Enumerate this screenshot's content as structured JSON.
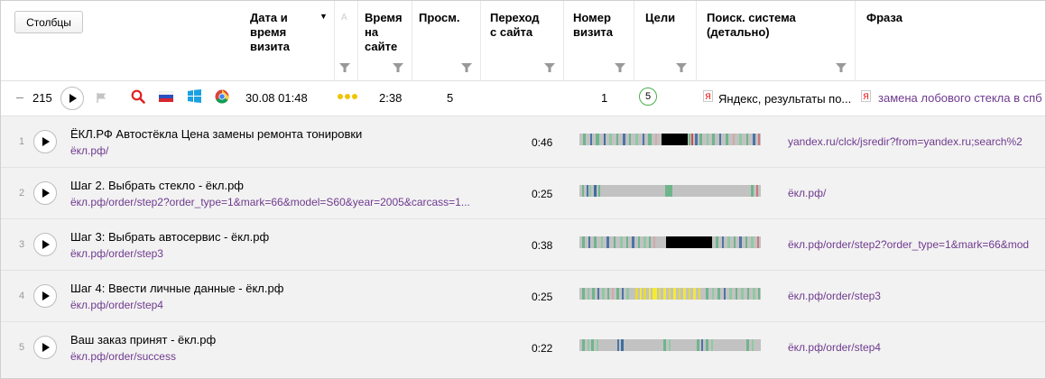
{
  "toolbar": {
    "columns_button": "Столбцы"
  },
  "columns": [
    {
      "label": "Дата и\nвремя\nвизита"
    },
    {
      "label": "А"
    },
    {
      "label": "Время\nна\nсайте"
    },
    {
      "label": "Просм."
    },
    {
      "label": "Переход\nс сайта"
    },
    {
      "label": "Номер\nвизита"
    },
    {
      "label": "Цели"
    },
    {
      "label": "Поиск. система\n(детально)"
    },
    {
      "label": "Фраза"
    }
  ],
  "sort_indicator": "▼",
  "visit": {
    "count": "215",
    "datetime": "30.08 01:48",
    "time_on_site": "2:38",
    "pageviews": "5",
    "visit_number": "1",
    "goals": "5",
    "search_engine_badge": "Я",
    "search_engine": "Яндекс, результаты по...",
    "phrase_badge": "Я",
    "phrase": "замена лобового стекла в спб",
    "icons": [
      "search-icon",
      "flag-ru-icon",
      "windows-icon",
      "chrome-icon"
    ]
  },
  "hits": [
    {
      "num": "1",
      "title": "ЁКЛ.РФ Автостёкла Цена замены ремонта тонировки",
      "url": "ёкл.рф/",
      "time": "0:46",
      "referrer": "yandex.ru/clck/jsredir?from=yandex.ru;search%2"
    },
    {
      "num": "2",
      "title": "Шаг 2. Выбрать стекло - ёкл.рф",
      "url": "ёкл.рф/order/step2?order_type=1&mark=66&model=S60&year=2005&carcass=1...",
      "time": "0:25",
      "referrer": "ёкл.рф/"
    },
    {
      "num": "3",
      "title": "Шаг 3: Выбрать автосервис - ёкл.рф",
      "url": "ёкл.рф/order/step3",
      "time": "0:38",
      "referrer": "ёкл.рф/order/step2?order_type=1&mark=66&mod"
    },
    {
      "num": "4",
      "title": "Шаг 4: Ввести личные данные - ёкл.рф",
      "url": "ёкл.рф/order/step4",
      "time": "0:25",
      "referrer": "ёкл.рф/order/step3"
    },
    {
      "num": "5",
      "title": "Ваш заказ принят - ёкл.рф",
      "url": "ёкл.рф/order/success",
      "time": "0:22",
      "referrer": "ёкл.рф/order/step4"
    }
  ],
  "colors": {
    "link": "#6f3a8f",
    "goal_ring": "#4cae4c",
    "dot": "#f0c400",
    "row_bg": "#f2f2f2"
  }
}
